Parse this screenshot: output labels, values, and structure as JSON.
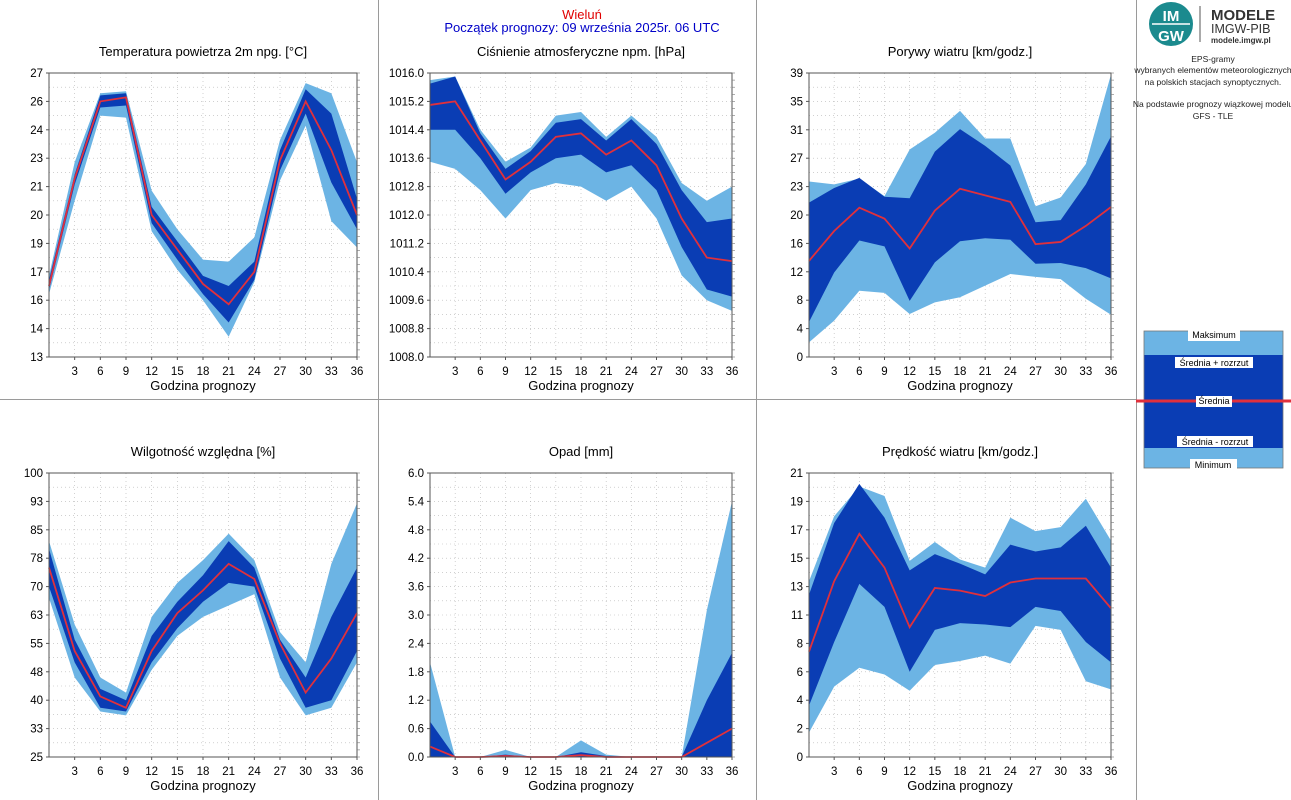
{
  "header": {
    "station": "Wieluń",
    "start": "Początek prognozy: 09 września 2025r. 06 UTC"
  },
  "logo": {
    "badge_top": "IM",
    "badge_bottom": "GW",
    "title": "MODELE",
    "subtitle": "IMGW-PIB",
    "url": "modele.imgw.pl"
  },
  "description": {
    "line1": "EPS-gramy",
    "line2": "wybranych elementów meteorologicznych",
    "line3": "na polskich stacjach  synoptycznych.",
    "line4": "Na podstawie prognozy wiązkowej modelu",
    "line5": "GFS - TLE"
  },
  "legend": {
    "max": "Maksimum",
    "upper": "Średnia + rozrzut",
    "mean": "Średnia",
    "lower": "Średnia - rozrzut",
    "min": "Minimum"
  },
  "colors": {
    "band_outer": "#6cb4e4",
    "band_inner": "#0a3db4",
    "mean_line": "#e0303c",
    "grid": "#b4b4b4",
    "station": "#e00000",
    "start": "#0000c8"
  },
  "chart_data": [
    {
      "type": "area",
      "title": "Temperatura powietrza 2m npg. [°C]",
      "xlabel": "Godzina prognozy",
      "ylim": [
        13,
        27
      ],
      "yticks": [
        "13",
        "14",
        "16",
        "17",
        "19",
        "20",
        "21",
        "23",
        "24",
        "26",
        "27"
      ],
      "xticks": [
        "3",
        "6",
        "9",
        "12",
        "15",
        "18",
        "21",
        "24",
        "27",
        "30",
        "33",
        "36"
      ],
      "x": [
        0,
        3,
        6,
        9,
        12,
        15,
        18,
        21,
        24,
        27,
        30,
        33,
        36
      ],
      "max": [
        17.0,
        22.6,
        26.0,
        26.1,
        21.2,
        19.3,
        17.8,
        17.7,
        18.9,
        23.7,
        26.5,
        26.0,
        22.6
      ],
      "upper": [
        16.8,
        22.0,
        25.9,
        26.0,
        20.4,
        18.7,
        17.0,
        16.5,
        17.7,
        23.2,
        26.2,
        25.0,
        20.8
      ],
      "mean": [
        16.5,
        21.8,
        25.6,
        25.8,
        20.0,
        18.3,
        16.6,
        15.6,
        17.2,
        22.7,
        25.6,
        23.2,
        20.0
      ],
      "lower": [
        16.3,
        21.5,
        25.3,
        25.4,
        19.6,
        17.8,
        16.1,
        14.7,
        16.8,
        22.2,
        25.0,
        21.6,
        19.3
      ],
      "min": [
        16.1,
        20.7,
        24.9,
        24.8,
        19.2,
        17.3,
        15.8,
        14.0,
        16.7,
        21.7,
        24.4,
        19.7,
        18.4
      ]
    },
    {
      "type": "area",
      "title": "Ciśnienie atmosferyczne npm. [hPa]",
      "xlabel": "Godzina prognozy",
      "ylim": [
        1008.0,
        1016.0
      ],
      "yticks": [
        "1008.0",
        "1008.8",
        "1009.6",
        "1010.4",
        "1011.2",
        "1012.0",
        "1012.8",
        "1013.6",
        "1014.4",
        "1015.2",
        "1016.0"
      ],
      "xticks": [
        "3",
        "6",
        "9",
        "12",
        "15",
        "18",
        "21",
        "24",
        "27",
        "30",
        "33",
        "36"
      ],
      "x": [
        0,
        3,
        6,
        9,
        12,
        15,
        18,
        21,
        24,
        27,
        30,
        33,
        36
      ],
      "max": [
        1015.8,
        1015.9,
        1014.4,
        1013.5,
        1013.9,
        1014.8,
        1014.9,
        1014.2,
        1014.8,
        1014.2,
        1012.9,
        1012.4,
        1012.8
      ],
      "upper": [
        1015.7,
        1015.9,
        1014.3,
        1013.3,
        1013.8,
        1014.6,
        1014.7,
        1014.1,
        1014.7,
        1014.0,
        1012.7,
        1011.8,
        1011.9
      ],
      "mean": [
        1015.1,
        1015.2,
        1014.1,
        1013.0,
        1013.5,
        1014.2,
        1014.3,
        1013.7,
        1014.1,
        1013.4,
        1011.9,
        1010.8,
        1010.7
      ],
      "lower": [
        1014.4,
        1014.4,
        1013.6,
        1012.6,
        1013.2,
        1013.6,
        1013.7,
        1013.2,
        1013.4,
        1012.7,
        1011.1,
        1009.9,
        1009.7
      ],
      "min": [
        1013.5,
        1013.3,
        1012.7,
        1011.9,
        1012.7,
        1012.9,
        1012.8,
        1012.4,
        1012.8,
        1011.9,
        1010.3,
        1009.6,
        1009.3
      ]
    },
    {
      "type": "area",
      "title": "Porywy wiatru [km/godz.]",
      "xlabel": "Godzina prognozy",
      "ylim": [
        0,
        39
      ],
      "yticks": [
        "0",
        "4",
        "8",
        "12",
        "16",
        "20",
        "23",
        "27",
        "31",
        "35",
        "39"
      ],
      "xticks": [
        "3",
        "6",
        "9",
        "12",
        "15",
        "18",
        "21",
        "24",
        "27",
        "30",
        "33",
        "36"
      ],
      "x": [
        0,
        3,
        6,
        9,
        12,
        15,
        18,
        21,
        24,
        27,
        30,
        33,
        36
      ],
      "max": [
        24.1,
        23.7,
        24.5,
        22.1,
        28.5,
        30.8,
        33.8,
        30.0,
        30.0,
        20.7,
        21.9,
        26.5,
        38.8
      ],
      "upper": [
        21.2,
        23.2,
        24.6,
        22.0,
        21.8,
        28.2,
        31.3,
        29.0,
        26.3,
        18.5,
        18.8,
        23.7,
        30.3
      ],
      "mean": [
        13.2,
        17.3,
        20.5,
        19.0,
        14.9,
        20.1,
        23.1,
        22.2,
        21.3,
        15.5,
        15.8,
        18.0,
        20.6
      ],
      "lower": [
        4.8,
        11.6,
        16.0,
        15.2,
        7.7,
        13.0,
        15.9,
        16.3,
        16.1,
        12.8,
        12.9,
        12.2,
        10.8
      ],
      "min": [
        2.0,
        5.0,
        9.1,
        8.8,
        5.9,
        7.5,
        8.2,
        9.8,
        11.4,
        11.0,
        10.7,
        8.0,
        5.8
      ]
    },
    {
      "type": "area",
      "title": "Wilgotność względna [%]",
      "xlabel": "Godzina prognozy",
      "ylim": [
        25,
        100
      ],
      "yticks": [
        "25",
        "33",
        "40",
        "48",
        "55",
        "63",
        "70",
        "78",
        "85",
        "93",
        "100"
      ],
      "xticks": [
        "3",
        "6",
        "9",
        "12",
        "15",
        "18",
        "21",
        "24",
        "27",
        "30",
        "33",
        "36"
      ],
      "x": [
        0,
        3,
        6,
        9,
        12,
        15,
        18,
        21,
        24,
        27,
        30,
        33,
        36
      ],
      "max": [
        82,
        60,
        46,
        42,
        62,
        71,
        77,
        84,
        77,
        58,
        50,
        76,
        92
      ],
      "upper": [
        80,
        56,
        43,
        40,
        57,
        66,
        73,
        82,
        75,
        56,
        46,
        62,
        75
      ],
      "mean": [
        75,
        53,
        41,
        38,
        53,
        63,
        69,
        76,
        72,
        55,
        42,
        51,
        63
      ],
      "lower": [
        70,
        50,
        38,
        37,
        50,
        59,
        66,
        71,
        70,
        51,
        38,
        40,
        53
      ],
      "min": [
        67,
        46,
        37,
        36,
        48,
        57,
        62,
        65,
        68,
        46,
        36,
        38,
        50
      ]
    },
    {
      "type": "area",
      "title": "Opad [mm]",
      "xlabel": "Godzina prognozy",
      "ylim": [
        0.0,
        6.0
      ],
      "yticks": [
        "0.0",
        "0.6",
        "1.2",
        "1.8",
        "2.4",
        "3.0",
        "3.6",
        "4.2",
        "4.8",
        "5.4",
        "6.0"
      ],
      "xticks": [
        "3",
        "6",
        "9",
        "12",
        "15",
        "18",
        "21",
        "24",
        "27",
        "30",
        "33",
        "36"
      ],
      "x": [
        0,
        3,
        6,
        9,
        12,
        15,
        18,
        21,
        24,
        27,
        30,
        33,
        36
      ],
      "max": [
        2.0,
        0.0,
        0.0,
        0.15,
        0.0,
        0.0,
        0.35,
        0.05,
        0.0,
        0.0,
        0.0,
        3.1,
        5.4
      ],
      "upper": [
        0.75,
        0.0,
        0.0,
        0.05,
        0.0,
        0.0,
        0.1,
        0.02,
        0.0,
        0.0,
        0.0,
        1.2,
        2.2
      ],
      "mean": [
        0.22,
        0.0,
        0.0,
        0.02,
        0.0,
        0.0,
        0.04,
        0.0,
        0.0,
        0.0,
        0.0,
        0.3,
        0.6
      ],
      "lower": [
        0.0,
        0.0,
        0.0,
        0.0,
        0.0,
        0.0,
        0.0,
        0.0,
        0.0,
        0.0,
        0.0,
        0.0,
        0.0
      ],
      "min": [
        0.0,
        0.0,
        0.0,
        0.0,
        0.0,
        0.0,
        0.0,
        0.0,
        0.0,
        0.0,
        0.0,
        0.0,
        0.0
      ]
    },
    {
      "type": "area",
      "title": "Prędkość wiatru [km/godz.]",
      "xlabel": "Godzina prognozy",
      "ylim": [
        0,
        21
      ],
      "yticks": [
        "0",
        "2",
        "4",
        "6",
        "8",
        "11",
        "13",
        "15",
        "17",
        "19",
        "21"
      ],
      "xticks": [
        "3",
        "6",
        "9",
        "12",
        "15",
        "18",
        "21",
        "24",
        "27",
        "30",
        "33",
        "36"
      ],
      "x": [
        0,
        3,
        6,
        9,
        12,
        15,
        18,
        21,
        24,
        27,
        30,
        33,
        36
      ],
      "max": [
        13.0,
        17.8,
        20.0,
        19.3,
        14.5,
        15.9,
        14.6,
        14.0,
        17.7,
        16.7,
        17.0,
        19.1,
        16.0
      ],
      "upper": [
        12.0,
        17.3,
        20.2,
        17.7,
        13.8,
        15.0,
        14.3,
        13.5,
        15.7,
        15.2,
        15.5,
        17.1,
        14.0
      ],
      "mean": [
        7.8,
        13.0,
        16.5,
        14.0,
        9.6,
        12.5,
        12.3,
        11.9,
        12.9,
        13.2,
        13.2,
        13.2,
        11.0
      ],
      "lower": [
        3.8,
        8.5,
        12.8,
        11.1,
        6.3,
        9.4,
        9.9,
        9.8,
        9.6,
        11.1,
        10.8,
        8.5,
        7.0
      ],
      "min": [
        1.8,
        5.2,
        6.6,
        6.1,
        4.9,
        6.8,
        7.1,
        7.5,
        6.9,
        9.7,
        9.4,
        5.6,
        5.0
      ]
    }
  ]
}
